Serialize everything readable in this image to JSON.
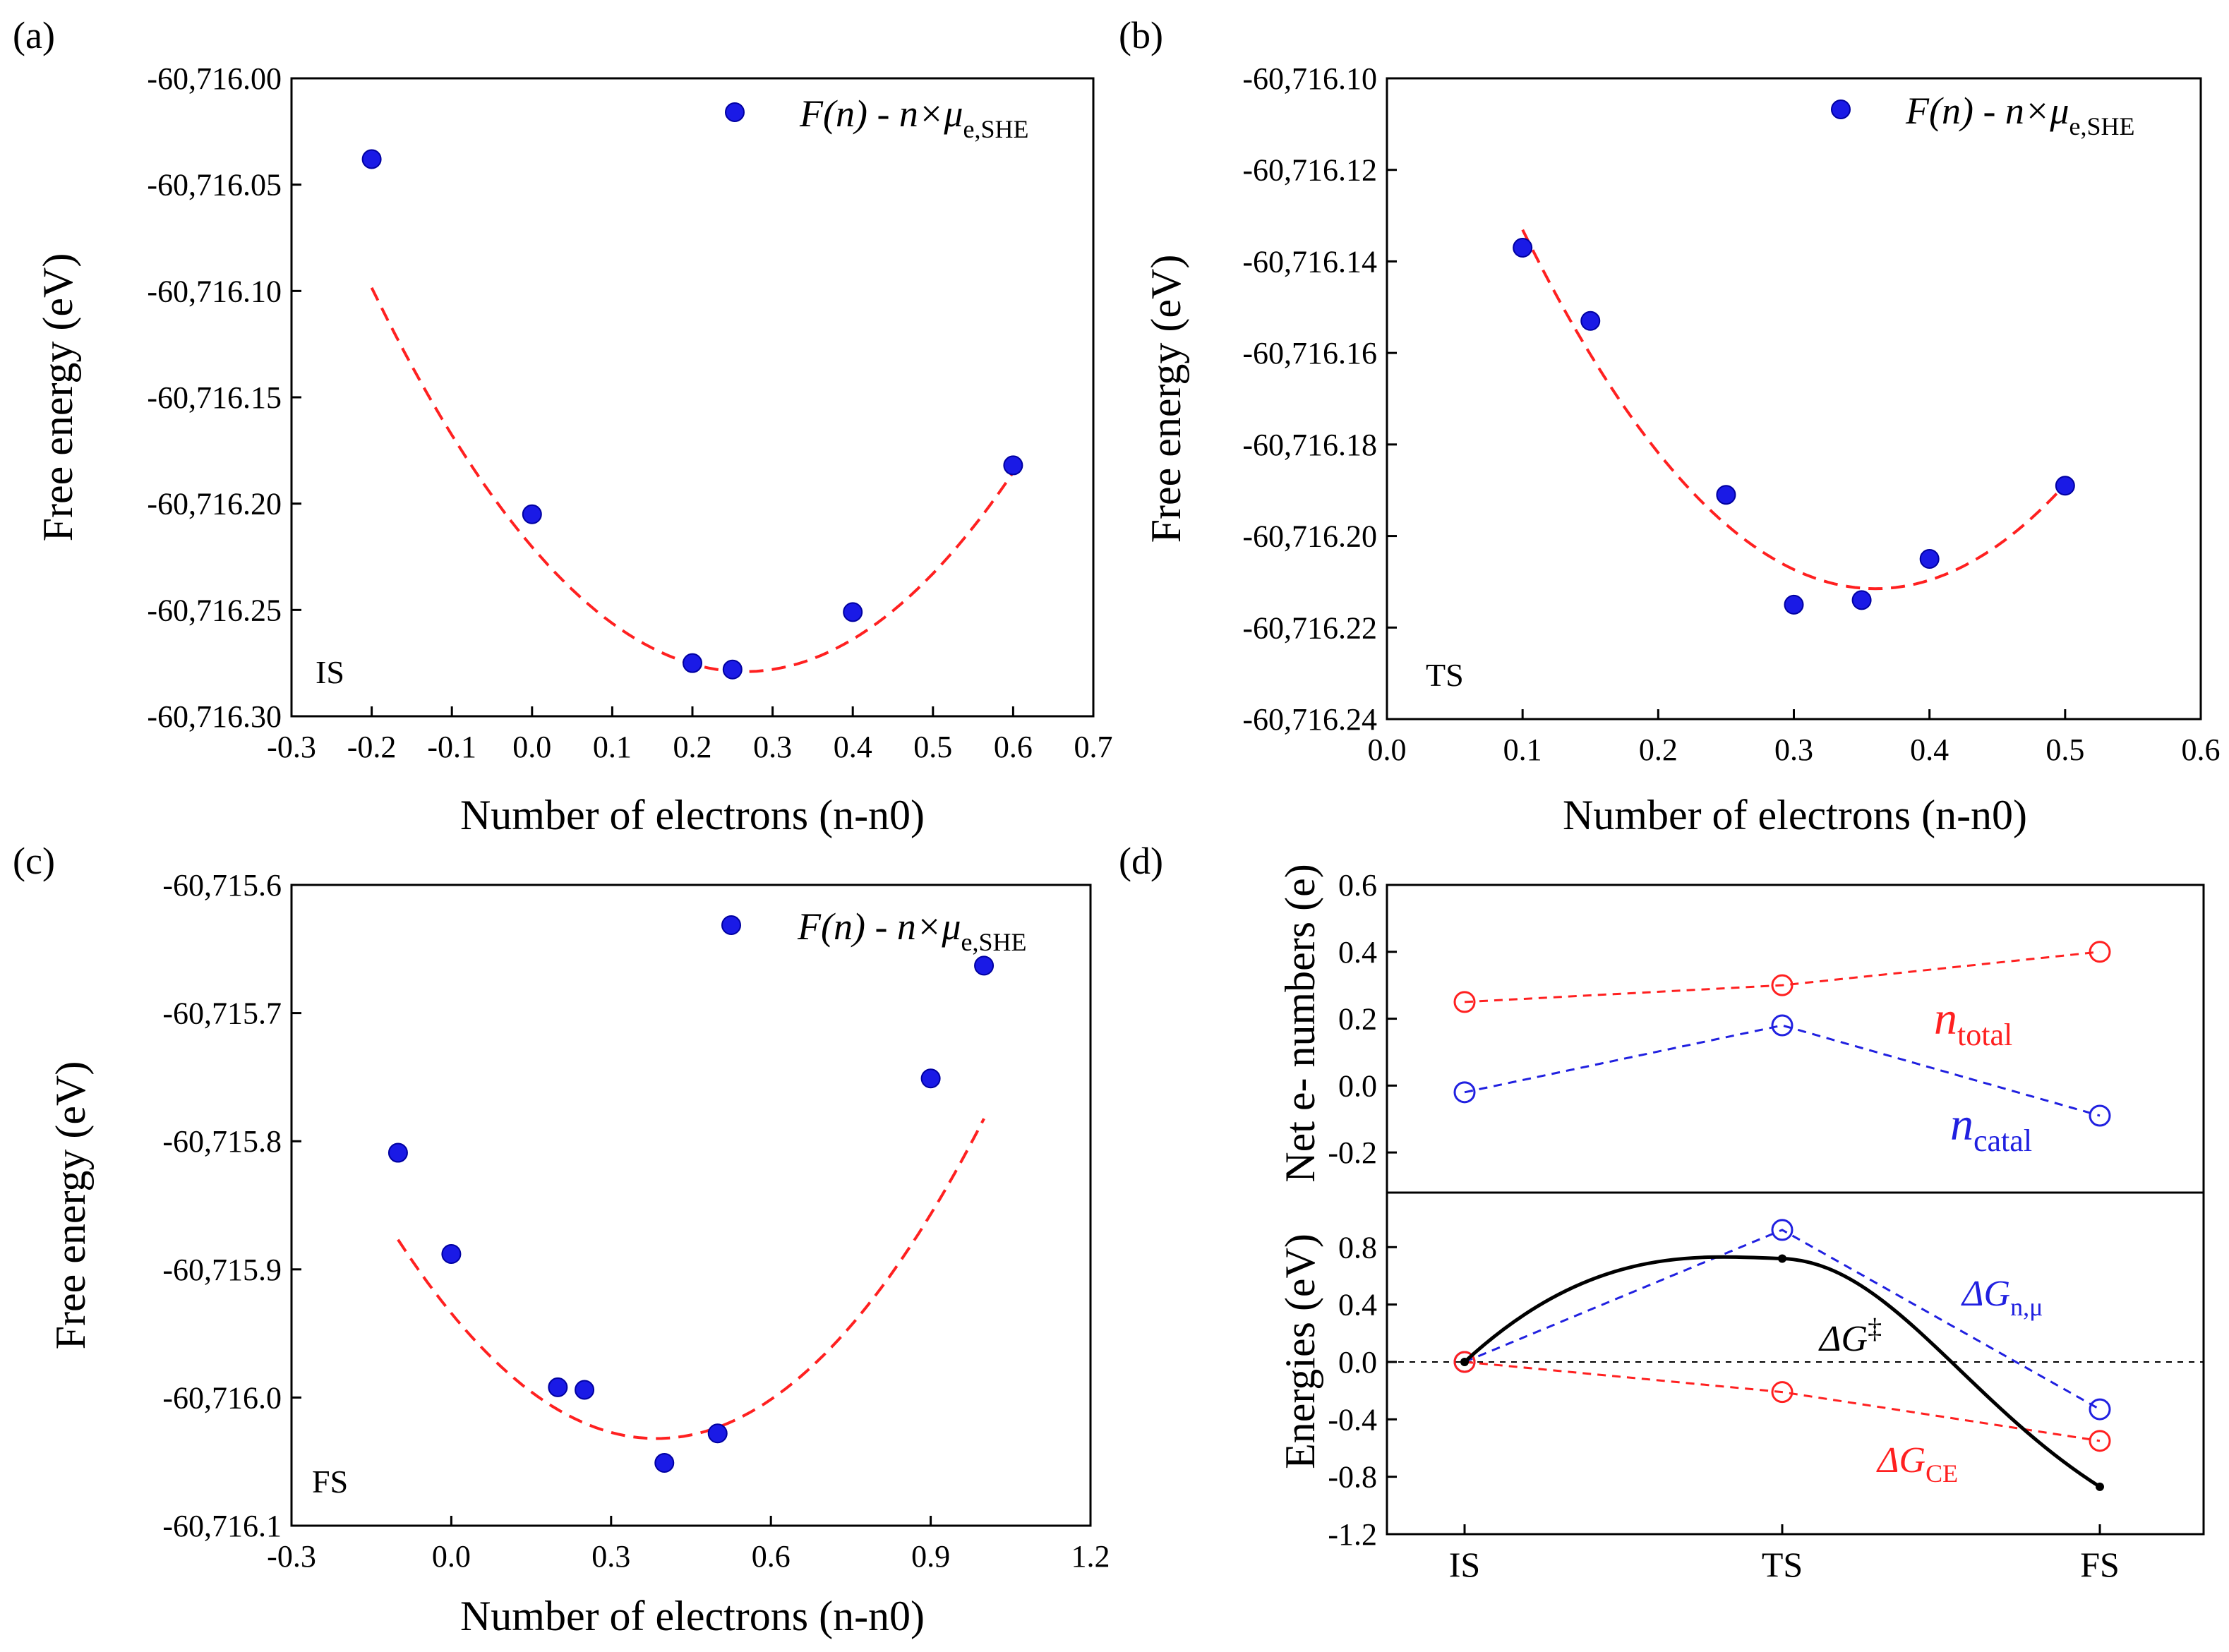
{
  "chart_data": [
    {
      "panel": "(a)",
      "type": "scatter",
      "state": "IS",
      "legend": {
        "main": "F(n) - n×μ",
        "sub": "e,SHE",
        "position": "top-right"
      },
      "xlabel": "Number of electrons (n-n0)",
      "ylabel": "Free energy (eV)",
      "xlim": [
        -0.3,
        0.7
      ],
      "ylim": [
        -60716.3,
        -60716.0
      ],
      "xticks": [
        -0.3,
        -0.2,
        -0.1,
        0.0,
        0.1,
        0.2,
        0.3,
        0.4,
        0.5,
        0.6,
        0.7
      ],
      "xtick_labels": [
        "-0.3",
        "-0.2",
        "-0.1",
        "0.0",
        "0.1",
        "0.2",
        "0.3",
        "0.4",
        "0.5",
        "0.6",
        "0.7"
      ],
      "yticks": [
        -60716.3,
        -60716.25,
        -60716.2,
        -60716.15,
        -60716.1,
        -60716.05,
        -60716.0
      ],
      "ytick_labels": [
        "-60,716.30",
        "-60,716.25",
        "-60,716.20",
        "-60,716.15",
        "-60,716.10",
        "-60,716.05",
        "-60,716.00"
      ],
      "points": {
        "x": [
          -0.2,
          0.0,
          0.2,
          0.25,
          0.4,
          0.6
        ],
        "y": [
          -60716.038,
          -60716.205,
          -60716.275,
          -60716.278,
          -60716.251,
          -60716.182
        ]
      },
      "fit": {
        "type": "quadratic",
        "vertex_x": 0.265,
        "vertex_y": -60716.279,
        "a": 0.835,
        "x_range": [
          -0.2,
          0.6
        ]
      }
    },
    {
      "panel": "(b)",
      "type": "scatter",
      "state": "TS",
      "legend": {
        "main": "F(n) - n×μ",
        "sub": "e,SHE",
        "position": "top-right"
      },
      "xlabel": "Number of electrons (n-n0)",
      "ylabel": "Free energy (eV)",
      "xlim": [
        0.0,
        0.6
      ],
      "ylim": [
        -60716.24,
        -60716.1
      ],
      "xticks": [
        0.0,
        0.1,
        0.2,
        0.3,
        0.4,
        0.5,
        0.6
      ],
      "xtick_labels": [
        "0.0",
        "0.1",
        "0.2",
        "0.3",
        "0.4",
        "0.5",
        "0.6"
      ],
      "yticks": [
        -60716.24,
        -60716.22,
        -60716.2,
        -60716.18,
        -60716.16,
        -60716.14,
        -60716.12,
        -60716.1
      ],
      "ytick_labels": [
        "-60,716.24",
        "-60,716.22",
        "-60,716.20",
        "-60,716.18",
        "-60,716.16",
        "-60,716.14",
        "-60,716.12",
        "-60,716.10"
      ],
      "points": {
        "x": [
          0.1,
          0.15,
          0.25,
          0.3,
          0.35,
          0.4,
          0.5
        ],
        "y": [
          -60716.137,
          -60716.153,
          -60716.191,
          -60716.215,
          -60716.214,
          -60716.205,
          -60716.189
        ]
      },
      "fit": {
        "type": "quadratic",
        "vertex_x": 0.36,
        "vertex_y": -60716.2115,
        "a": 1.16,
        "x_range": [
          0.1,
          0.5
        ]
      }
    },
    {
      "panel": "(c)",
      "type": "scatter",
      "state": "FS",
      "legend": {
        "main": "F(n) - n×μ",
        "sub": "e,SHE",
        "position": "top-right"
      },
      "xlabel": "Number of electrons (n-n0)",
      "ylabel": "Free energy (eV)",
      "xlim": [
        -0.3,
        1.2
      ],
      "ylim": [
        -60716.1,
        -60715.6
      ],
      "xticks": [
        -0.3,
        0.0,
        0.3,
        0.6,
        0.9,
        1.2
      ],
      "xtick_labels": [
        "-0.3",
        "0.0",
        "0.3",
        "0.6",
        "0.9",
        "1.2"
      ],
      "yticks": [
        -60716.1,
        -60716.0,
        -60715.9,
        -60715.8,
        -60715.7,
        -60715.6
      ],
      "ytick_labels": [
        "-60,716.1",
        "-60,716.0",
        "-60,715.9",
        "-60,715.8",
        "-60,715.7",
        "-60,715.6"
      ],
      "points": {
        "x": [
          -0.1,
          0.0,
          0.2,
          0.25,
          0.4,
          0.5,
          0.9,
          1.0
        ],
        "y": [
          -60715.809,
          -60715.888,
          -60715.992,
          -60715.994,
          -60716.051,
          -60716.028,
          -60715.751,
          -60715.663
        ]
      },
      "fit": {
        "type": "quadratic",
        "vertex_x": 0.385,
        "vertex_y": -60716.032,
        "a": 0.66,
        "x_range": [
          -0.1,
          1.0
        ]
      }
    },
    {
      "panel": "(d)",
      "type": "line",
      "categories": [
        "IS",
        "TS",
        "FS"
      ],
      "top": {
        "ylabel": "Net e- numbers (e)",
        "ylim": [
          -0.32,
          0.6
        ],
        "yticks": [
          -0.2,
          0.0,
          0.2,
          0.4,
          0.6
        ],
        "ytick_labels": [
          "-0.2",
          "0.0",
          "0.2",
          "0.4",
          "0.6"
        ],
        "series": [
          {
            "name": "n_total",
            "label_main": "n",
            "label_sub": "total",
            "color": "#ff2020",
            "values": [
              0.25,
              0.3,
              0.4
            ]
          },
          {
            "name": "n_catal",
            "label_main": "n",
            "label_sub": "catal",
            "color": "#2020e0",
            "values": [
              -0.02,
              0.18,
              -0.09
            ]
          }
        ]
      },
      "bottom": {
        "ylabel": "Energies (eV)",
        "ylim": [
          -1.2,
          1.18
        ],
        "yticks": [
          -1.2,
          -0.8,
          -0.4,
          0.0,
          0.4,
          0.8
        ],
        "ytick_labels": [
          "-1.2",
          "-0.8",
          "-0.4",
          "0.0",
          "0.4",
          "0.8"
        ],
        "series": [
          {
            "name": "dG_n_mu",
            "label_main": "ΔG",
            "label_sub": "n,μ",
            "color": "#2020e0",
            "values": [
              0.0,
              0.92,
              -0.33
            ]
          },
          {
            "name": "dG_CE",
            "label_main": "ΔG",
            "label_sub": "CE",
            "color": "#ff2020",
            "values": [
              0.0,
              -0.21,
              -0.55
            ]
          },
          {
            "name": "dG_barrier",
            "label_main": "ΔG",
            "label_sup": "‡",
            "color": "#000000",
            "values": [
              0.0,
              0.72,
              -0.87
            ]
          }
        ]
      }
    }
  ],
  "panel_labels": [
    "(a)",
    "(b)",
    "(c)",
    "(d)"
  ],
  "state_labels": [
    "IS",
    "TS",
    "FS"
  ]
}
